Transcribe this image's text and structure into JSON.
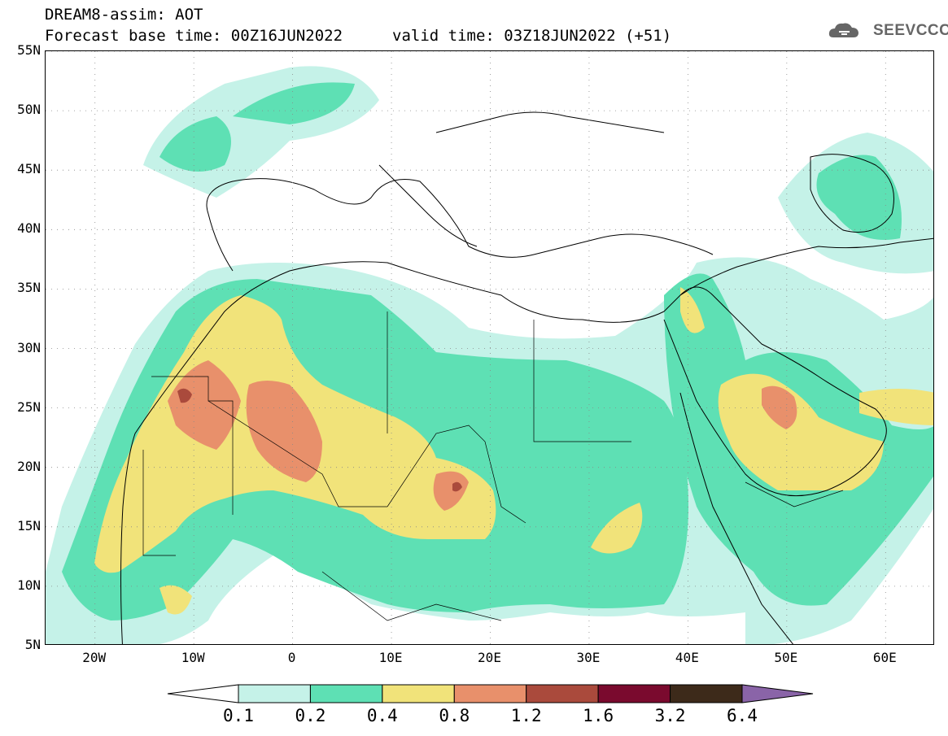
{
  "header": {
    "title_line1": "DREAM8-assim: AOT",
    "title_line2": "Forecast base time: 00Z16JUN2022",
    "valid_time": "valid time: 03Z18JUN2022 (+51)",
    "logo_text": "SEEVCCC"
  },
  "map": {
    "variable": "AOT",
    "lon_range": [
      -25,
      65
    ],
    "lat_range": [
      5,
      55
    ],
    "lat_ticks": [
      {
        "value": 55,
        "label": "55N"
      },
      {
        "value": 50,
        "label": "50N"
      },
      {
        "value": 45,
        "label": "45N"
      },
      {
        "value": 40,
        "label": "40N"
      },
      {
        "value": 35,
        "label": "35N"
      },
      {
        "value": 30,
        "label": "30N"
      },
      {
        "value": 25,
        "label": "25N"
      },
      {
        "value": 20,
        "label": "20N"
      },
      {
        "value": 15,
        "label": "15N"
      },
      {
        "value": 10,
        "label": "10N"
      },
      {
        "value": 5,
        "label": "5N"
      }
    ],
    "lon_ticks": [
      {
        "value": -20,
        "label": "20W"
      },
      {
        "value": -10,
        "label": "10W"
      },
      {
        "value": 0,
        "label": "0"
      },
      {
        "value": 10,
        "label": "10E"
      },
      {
        "value": 20,
        "label": "20E"
      },
      {
        "value": 30,
        "label": "30E"
      },
      {
        "value": 40,
        "label": "40E"
      },
      {
        "value": 50,
        "label": "50E"
      },
      {
        "value": 60,
        "label": "60E"
      }
    ],
    "grid": "dotted"
  },
  "colorbar": {
    "labels": [
      "0.1",
      "0.2",
      "0.4",
      "0.8",
      "1.2",
      "1.6",
      "3.2",
      "6.4"
    ],
    "colors": [
      "#c5f2e8",
      "#5ee0b4",
      "#f1e37a",
      "#e8906b",
      "#aa4a3c",
      "#7a0a2e",
      "#3d2a1a"
    ],
    "under_color": "#ffffff",
    "over_color": "#8a64a8"
  }
}
